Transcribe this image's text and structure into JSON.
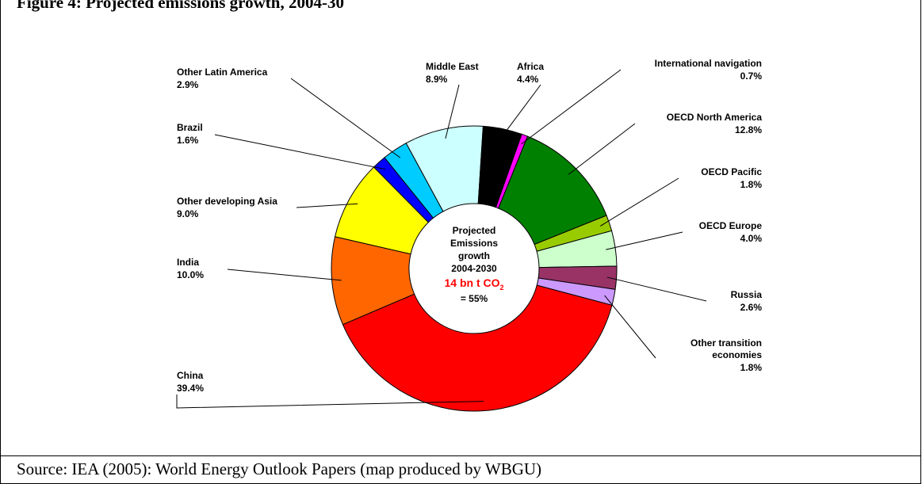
{
  "figure": {
    "title": "Figure 4: Projected emissions growth, 2004-30",
    "source": "Source: IEA (2005): World Energy Outlook Papers (map produced by WBGU)"
  },
  "chart_data": {
    "type": "pie",
    "variant": "donut",
    "title": "",
    "center_label": {
      "lines": [
        "Projected",
        "Emissions",
        "growth",
        "2004-2030"
      ],
      "highlight": "14 bn t CO",
      "highlight_subscript": "2",
      "footer": "= 55%",
      "highlight_color": "#ff0000"
    },
    "slices": [
      {
        "name": "International navigation",
        "value": 0.7,
        "label": "0.7%",
        "color": "#ff00ff"
      },
      {
        "name": "OECD North America",
        "value": 12.8,
        "label": "12.8%",
        "color": "#008000"
      },
      {
        "name": "OECD Pacific",
        "value": 1.8,
        "label": "1.8%",
        "color": "#99cc00"
      },
      {
        "name": "OECD Europe",
        "value": 4.0,
        "label": "4.0%",
        "color": "#ccffcc"
      },
      {
        "name": "Russia",
        "value": 2.6,
        "label": "2.6%",
        "color": "#993366"
      },
      {
        "name": "Other transition economies",
        "value": 1.8,
        "label": "1.8%",
        "color": "#cc99ff"
      },
      {
        "name": "China",
        "value": 39.4,
        "label": "39.4%",
        "color": "#ff0000"
      },
      {
        "name": "India",
        "value": 10.0,
        "label": "10.0%",
        "color": "#ff6600"
      },
      {
        "name": "Other developing Asia",
        "value": 9.0,
        "label": "9.0%",
        "color": "#ffff00"
      },
      {
        "name": "Brazil",
        "value": 1.6,
        "label": "1.6%",
        "color": "#0000ff"
      },
      {
        "name": "Other Latin America",
        "value": 2.9,
        "label": "2.9%",
        "color": "#00ccff"
      },
      {
        "name": "Middle East",
        "value": 8.9,
        "label": "8.9%",
        "color": "#ccffff"
      },
      {
        "name": "Africa",
        "value": 4.4,
        "label": "4.4%",
        "color": "#000000"
      }
    ]
  }
}
